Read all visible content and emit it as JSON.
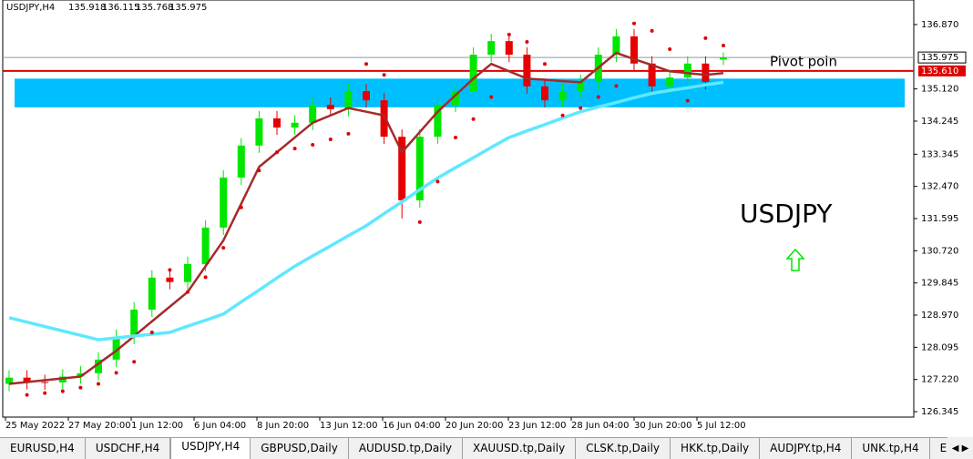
{
  "header": {
    "symbol": "USDJPY,H4",
    "open": "135.918",
    "high": "136.115",
    "low": "135.768",
    "close": "135.975"
  },
  "chart_data": {
    "type": "candlestick",
    "ylim": [
      126.197,
      137.538
    ],
    "yticks": [
      {
        "value": 136.87,
        "label": "136.870"
      },
      {
        "value": 135.12,
        "label": "135.120"
      },
      {
        "value": 134.245,
        "label": "134.245"
      },
      {
        "value": 133.345,
        "label": "133.345"
      },
      {
        "value": 132.47,
        "label": "132.470"
      },
      {
        "value": 131.595,
        "label": "131.595"
      },
      {
        "value": 130.72,
        "label": "130.720"
      },
      {
        "value": 129.845,
        "label": "129.845"
      },
      {
        "value": 128.97,
        "label": "128.970"
      },
      {
        "value": 128.095,
        "label": "128.095"
      },
      {
        "value": 127.22,
        "label": "127.220"
      },
      {
        "value": 126.345,
        "label": "126.345"
      }
    ],
    "time_labels": [
      "25 May 2022",
      "27 May 20:00",
      "1 Jun 12:00",
      "6 Jun 04:00",
      "8 Jun 20:00",
      "13 Jun 12:00",
      "16 Jun 04:00",
      "20 Jun 20:00",
      "23 Jun 12:00",
      "28 Jun 04:00",
      "30 Jun 20:00",
      "5 Jul 12:00"
    ],
    "up_color": "#00e600",
    "down_color": "#e60000",
    "open": [
      127.1,
      127.27,
      127.15,
      127.14,
      127.3,
      127.39,
      127.76,
      128.38,
      129.12,
      129.99,
      129.87,
      130.36,
      131.35,
      132.71,
      133.58,
      134.32,
      134.07,
      134.2,
      134.69,
      134.57,
      135.06,
      134.81,
      133.82,
      132.09,
      133.82,
      134.69,
      135.06,
      136.05,
      136.42,
      136.05,
      135.19,
      134.81,
      135.06,
      135.31,
      136.05,
      136.55,
      135.81,
      135.19,
      135.43,
      135.81,
      135.918
    ],
    "high": [
      127.47,
      127.47,
      127.35,
      127.5,
      127.59,
      127.96,
      128.58,
      129.32,
      130.19,
      130.19,
      130.56,
      131.55,
      132.91,
      133.78,
      134.52,
      134.52,
      134.4,
      134.89,
      134.89,
      135.26,
      135.26,
      135.01,
      134.02,
      134.02,
      134.89,
      135.26,
      136.25,
      136.62,
      136.62,
      136.25,
      135.39,
      135.26,
      135.51,
      136.25,
      136.75,
      136.75,
      136.01,
      135.63,
      136.01,
      136.01,
      136.115
    ],
    "low": [
      126.9,
      126.95,
      126.94,
      126.94,
      127.1,
      127.19,
      127.56,
      128.18,
      128.92,
      129.67,
      129.67,
      130.16,
      131.15,
      132.51,
      133.38,
      133.87,
      133.87,
      134.0,
      134.37,
      134.37,
      134.61,
      133.62,
      131.6,
      131.89,
      133.62,
      134.49,
      134.86,
      135.85,
      135.85,
      134.99,
      134.61,
      134.61,
      134.86,
      135.11,
      135.85,
      135.61,
      134.99,
      134.99,
      135.23,
      135.11,
      135.768
    ],
    "close": [
      127.27,
      127.15,
      127.14,
      127.3,
      127.39,
      127.76,
      128.38,
      129.12,
      129.99,
      129.87,
      130.36,
      131.35,
      132.71,
      133.58,
      134.32,
      134.07,
      134.2,
      134.69,
      134.57,
      135.06,
      134.81,
      133.82,
      132.09,
      133.82,
      134.69,
      135.06,
      136.05,
      136.42,
      136.05,
      135.19,
      134.81,
      135.06,
      135.31,
      136.05,
      136.55,
      135.81,
      135.19,
      135.43,
      135.81,
      135.31,
      135.975
    ],
    "overlays": [
      {
        "style": "line",
        "color": "#a52a2a",
        "width": 2.5,
        "values": [
          127.1,
          127.15,
          127.2,
          127.25,
          127.3,
          127.65,
          128.0,
          128.4,
          128.8,
          129.2,
          129.6,
          130.3,
          131.0,
          132.0,
          133.0,
          133.4,
          133.8,
          134.2,
          134.4,
          134.6,
          134.5,
          134.4,
          133.4,
          133.95,
          134.5,
          134.95,
          135.4,
          135.8,
          135.6,
          135.4,
          135.37,
          135.33,
          135.3,
          135.7,
          136.1,
          135.93,
          135.77,
          135.6,
          135.55,
          135.5,
          135.55
        ]
      },
      {
        "style": "line",
        "color": "#5fe8ff",
        "width": 3.5,
        "values": [
          128.9,
          128.78,
          128.66,
          128.54,
          128.42,
          128.3,
          128.35,
          128.4,
          128.45,
          128.5,
          128.67,
          128.83,
          129.0,
          129.33,
          129.65,
          129.98,
          130.3,
          130.58,
          130.85,
          131.13,
          131.4,
          131.73,
          132.05,
          132.38,
          132.7,
          132.98,
          133.25,
          133.53,
          133.8,
          133.98,
          134.15,
          134.33,
          134.5,
          134.63,
          134.75,
          134.88,
          135.0,
          135.08,
          135.15,
          135.23,
          135.3
        ]
      },
      {
        "style": "dots",
        "color": "#e00000",
        "width": 2,
        "values": [
          null,
          126.8,
          126.85,
          126.9,
          127.0,
          127.1,
          127.4,
          127.7,
          128.5,
          130.2,
          129.6,
          130.0,
          130.8,
          131.9,
          132.9,
          133.4,
          133.5,
          133.6,
          133.75,
          133.9,
          135.8,
          135.5,
          132.8,
          131.5,
          132.6,
          133.8,
          134.3,
          134.9,
          136.6,
          136.4,
          135.8,
          134.4,
          134.6,
          134.9,
          135.2,
          136.9,
          136.7,
          136.2,
          134.8,
          136.5,
          136.3
        ]
      }
    ],
    "zone": {
      "top": 135.4,
      "bottom": 134.62,
      "color": "#00bfff"
    },
    "pivot": {
      "value": 135.61,
      "label": "135.610",
      "color": "#e00000",
      "text": "Pivot poin"
    },
    "current": {
      "value": 135.975,
      "label": "135.975"
    },
    "symbol_text": "USDJPY"
  },
  "tabs": [
    "EURUSD,H4",
    "USDCHF,H4",
    "USDJPY,H4",
    "GBPUSD,Daily",
    "AUDUSD.tp,Daily",
    "XAUUSD.tp,Daily",
    "CLSK.tp,Daily",
    "HKK.tp,Daily",
    "AUDJPY.tp,H4",
    "UNK.tp,H4",
    "E"
  ],
  "active_tab": 2
}
